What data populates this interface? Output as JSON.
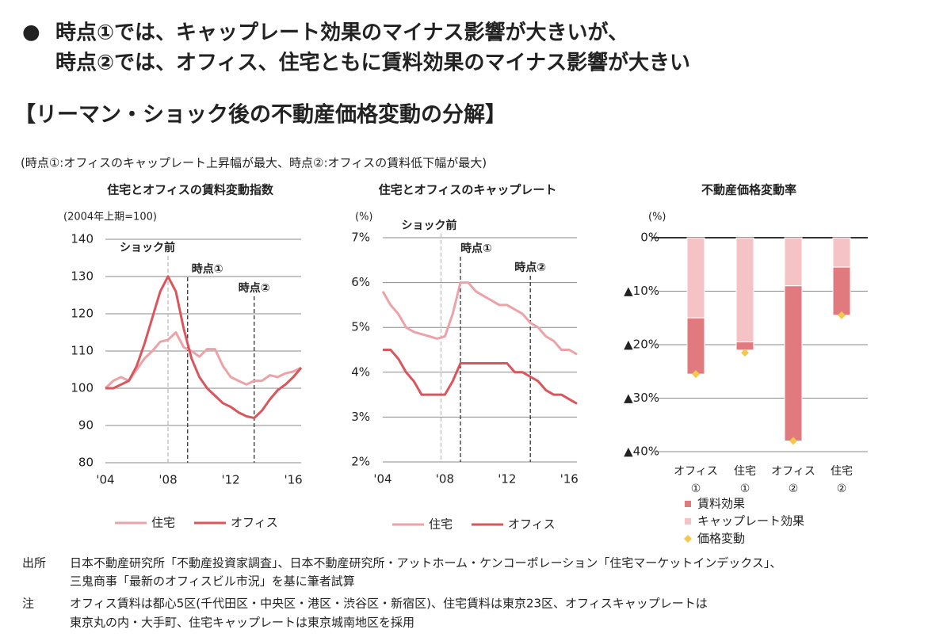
{
  "header": {
    "bullet": "●",
    "lines": [
      "時点①では、キャップレート効果のマイナス影響が大きいが、",
      "時点②では、オフィス、住宅ともに賃料効果のマイナス影響が大きい"
    ]
  },
  "heading": "【リーマン・ショック後の不動産価格変動の分解】",
  "subnote": "(時点①:オフィスのキャップレート上昇幅が最大、時点②:オフィスの賃料低下幅が最大)",
  "chart_data": [
    {
      "type": "line",
      "title": "住宅とオフィスの賃料変動指数",
      "unit_label": "(2004年上期=100)",
      "x": [
        2004,
        2004.5,
        2005,
        2005.5,
        2006,
        2006.5,
        2007,
        2007.5,
        2008,
        2008.5,
        2009,
        2009.5,
        2010,
        2010.5,
        2011,
        2011.5,
        2012,
        2012.5,
        2013,
        2013.5,
        2014,
        2014.5,
        2015,
        2015.5,
        2016,
        2016.5
      ],
      "series": [
        {
          "name": "住宅",
          "color": "#eba3a7",
          "values": [
            100,
            102,
            103,
            102,
            105,
            108,
            110,
            112.5,
            113,
            115,
            111,
            110,
            108.5,
            110.5,
            110.5,
            106,
            103,
            102,
            101,
            102,
            102,
            103.5,
            103,
            104,
            104.5,
            105.5
          ]
        },
        {
          "name": "オフィス",
          "color": "#d9565c",
          "values": [
            100,
            100,
            101,
            102,
            106,
            112,
            119,
            126,
            130,
            126,
            116,
            108,
            103,
            100,
            98,
            96,
            95,
            93.5,
            92.5,
            92,
            94,
            97,
            99.5,
            101,
            103,
            105.5
          ]
        }
      ],
      "xlim": [
        2004,
        2016.5
      ],
      "xticks": [
        {
          "value": 2004,
          "label": "'04"
        },
        {
          "value": 2008,
          "label": "'08"
        },
        {
          "value": 2012,
          "label": "'12"
        },
        {
          "value": 2016,
          "label": "'16"
        }
      ],
      "ylim": [
        80,
        140
      ],
      "yticks": [
        80,
        90,
        100,
        110,
        120,
        130,
        140
      ],
      "grid": true,
      "annotations": [
        {
          "text": "ショック前",
          "x": 2008
        },
        {
          "text": "時点①",
          "x": 2009.25
        },
        {
          "text": "時点②",
          "x": 2013.5
        }
      ]
    },
    {
      "type": "line",
      "title": "住宅とオフィスのキャップレート",
      "unit_label": "(%)",
      "x": [
        2004,
        2004.5,
        2005,
        2005.5,
        2006,
        2006.5,
        2007,
        2007.5,
        2008,
        2008.5,
        2009,
        2009.5,
        2010,
        2010.5,
        2011,
        2011.5,
        2012,
        2012.5,
        2013,
        2013.5,
        2014,
        2014.5,
        2015,
        2015.5,
        2016,
        2016.5
      ],
      "series": [
        {
          "name": "住宅",
          "color": "#eba3a7",
          "values": [
            5.8,
            5.5,
            5.3,
            5.0,
            4.9,
            4.85,
            4.8,
            4.75,
            4.8,
            5.3,
            6.0,
            6.0,
            5.8,
            5.7,
            5.6,
            5.5,
            5.5,
            5.4,
            5.3,
            5.1,
            5.0,
            4.8,
            4.7,
            4.5,
            4.5,
            4.4
          ]
        },
        {
          "name": "オフィス",
          "color": "#d9565c",
          "values": [
            4.5,
            4.5,
            4.3,
            4.0,
            3.8,
            3.5,
            3.5,
            3.5,
            3.5,
            3.8,
            4.2,
            4.2,
            4.2,
            4.2,
            4.2,
            4.2,
            4.2,
            4.0,
            4.0,
            3.9,
            3.8,
            3.6,
            3.5,
            3.5,
            3.4,
            3.3
          ]
        }
      ],
      "xlim": [
        2004,
        2016.5
      ],
      "xticks": [
        {
          "value": 2004,
          "label": "'04"
        },
        {
          "value": 2008,
          "label": "'08"
        },
        {
          "value": 2012,
          "label": "'12"
        },
        {
          "value": 2016,
          "label": "'16"
        }
      ],
      "ylim": [
        2,
        7
      ],
      "yticks": [
        {
          "value": 2,
          "label": "2%"
        },
        {
          "value": 3,
          "label": "3%"
        },
        {
          "value": 4,
          "label": "4%"
        },
        {
          "value": 5,
          "label": "5%"
        },
        {
          "value": 6,
          "label": "6%"
        },
        {
          "value": 7,
          "label": "7%"
        }
      ],
      "grid": true,
      "annotations": [
        {
          "text": "ショック前",
          "x": 2007.75
        },
        {
          "text": "時点①",
          "x": 2009
        },
        {
          "text": "時点②",
          "x": 2013.5
        }
      ]
    },
    {
      "type": "bar",
      "stacked": true,
      "title": "不動産価格変動率",
      "unit_label": "(%)",
      "categories": [
        [
          "オフィス",
          "①"
        ],
        [
          "住宅",
          "①"
        ],
        [
          "オフィス",
          "②"
        ],
        [
          "住宅",
          "②"
        ]
      ],
      "series": [
        {
          "name": "賃料効果",
          "color": "#e07a7e",
          "values": [
            -10.5,
            -1.5,
            -29,
            -9
          ]
        },
        {
          "name": "キャップレート効果",
          "color": "#f5c3c5",
          "values": [
            -15,
            -19.5,
            -9,
            -5.5
          ]
        },
        {
          "name": "価格変動",
          "color": "#f2c94c",
          "type": "scatter",
          "values": [
            -25.5,
            -21.5,
            -38,
            -14.5
          ]
        }
      ],
      "ylim": [
        -40,
        0
      ],
      "yticks": [
        {
          "value": -40,
          "label": "▲40%"
        },
        {
          "value": -30,
          "label": "▲30%"
        },
        {
          "value": -20,
          "label": "▲20%"
        },
        {
          "value": -10,
          "label": "▲10%"
        },
        {
          "value": 0,
          "label": "0%"
        }
      ],
      "grid": true
    }
  ],
  "footer": {
    "source_label": "出所",
    "source_lines": [
      "日本不動産研究所「不動産投資家調査」、日本不動産研究所・アットホーム・ケンコーポレーション「住宅マーケットインデックス」、",
      "三鬼商事「最新のオフィスビル市況」を基に筆者試算"
    ],
    "note_label": "注",
    "note_lines": [
      "オフィス賃料は都心5区(千代田区・中央区・港区・渋谷区・新宿区)、住宅賃料は東京23区、オフィスキャップレートは",
      "東京丸の内・大手町、住宅キャップレートは東京城南地区を採用"
    ]
  }
}
